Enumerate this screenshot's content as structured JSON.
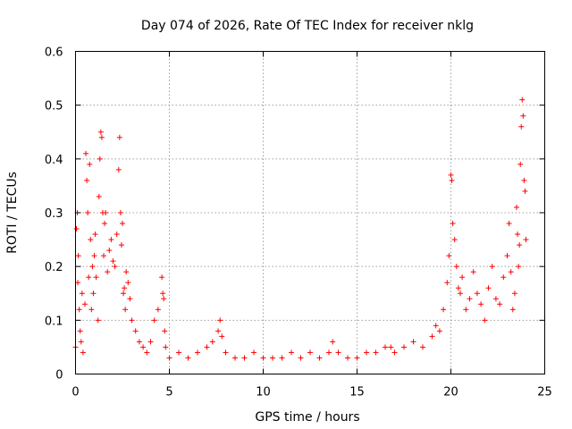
{
  "chart_data": {
    "type": "scatter",
    "title": "Day 074 of 2026, Rate Of TEC Index for receiver nklg",
    "xlabel": "GPS time / hours",
    "ylabel": "ROTI / TECUs",
    "xlim": [
      0,
      25
    ],
    "ylim": [
      0,
      0.6
    ],
    "xticks": [
      "0",
      "5",
      "10",
      "15",
      "20",
      "25"
    ],
    "yticks": [
      "0",
      "0.1",
      "0.2",
      "0.3",
      "0.4",
      "0.5",
      "0.6"
    ],
    "grid": true,
    "legend": "none",
    "marker": "+",
    "color": "#ff0000",
    "series": [
      {
        "x": [
          0.0,
          0.05,
          0.1,
          0.12,
          0.15,
          0.2,
          0.25,
          0.3,
          0.35,
          0.4,
          0.5,
          0.55,
          0.6,
          0.65,
          0.7,
          0.75,
          0.8,
          0.85,
          0.9,
          0.95,
          1.0,
          1.05,
          1.1,
          1.2,
          1.25,
          1.3,
          1.35,
          1.4,
          1.45,
          1.5,
          1.55,
          1.6,
          1.7,
          1.8,
          1.9,
          2.0,
          2.1,
          2.2,
          2.3,
          2.35,
          2.4,
          2.45,
          2.5,
          2.55,
          2.6,
          2.65,
          2.7,
          2.8,
          2.9,
          3.0,
          3.2,
          3.4,
          3.6,
          3.8,
          4.0,
          4.2,
          4.4,
          4.6,
          4.65,
          4.7,
          4.75,
          4.8,
          5.0,
          5.5,
          6.0,
          6.5,
          7.0,
          7.3,
          7.6,
          7.7,
          7.8,
          8.0,
          8.5,
          9.0,
          9.5,
          10.0,
          10.5,
          11.0,
          11.5,
          12.0,
          12.5,
          13.0,
          13.5,
          13.7,
          14.0,
          14.5,
          15.0,
          15.5,
          16.0,
          16.5,
          16.8,
          17.0,
          17.5,
          18.0,
          18.5,
          19.0,
          19.2,
          19.4,
          19.6,
          19.8,
          19.9,
          20.0,
          20.05,
          20.1,
          20.2,
          20.3,
          20.4,
          20.5,
          20.6,
          20.8,
          21.0,
          21.2,
          21.4,
          21.6,
          21.8,
          22.0,
          22.2,
          22.4,
          22.6,
          22.8,
          23.0,
          23.1,
          23.2,
          23.3,
          23.4,
          23.5,
          23.55,
          23.6,
          23.65,
          23.7,
          23.75,
          23.8,
          23.85,
          23.9,
          23.95,
          24.0
        ],
        "y": [
          0.05,
          0.27,
          0.3,
          0.17,
          0.22,
          0.12,
          0.08,
          0.06,
          0.15,
          0.04,
          0.13,
          0.41,
          0.36,
          0.3,
          0.18,
          0.39,
          0.25,
          0.12,
          0.2,
          0.15,
          0.22,
          0.26,
          0.18,
          0.1,
          0.33,
          0.4,
          0.45,
          0.44,
          0.3,
          0.22,
          0.28,
          0.3,
          0.19,
          0.23,
          0.25,
          0.21,
          0.2,
          0.26,
          0.38,
          0.44,
          0.3,
          0.24,
          0.28,
          0.15,
          0.16,
          0.12,
          0.19,
          0.17,
          0.14,
          0.1,
          0.08,
          0.06,
          0.05,
          0.04,
          0.06,
          0.1,
          0.12,
          0.18,
          0.15,
          0.14,
          0.08,
          0.05,
          0.03,
          0.04,
          0.03,
          0.04,
          0.05,
          0.06,
          0.08,
          0.1,
          0.07,
          0.04,
          0.03,
          0.03,
          0.04,
          0.03,
          0.03,
          0.03,
          0.04,
          0.03,
          0.04,
          0.03,
          0.04,
          0.06,
          0.04,
          0.03,
          0.03,
          0.04,
          0.04,
          0.05,
          0.05,
          0.04,
          0.05,
          0.06,
          0.05,
          0.07,
          0.09,
          0.08,
          0.12,
          0.17,
          0.22,
          0.37,
          0.36,
          0.28,
          0.25,
          0.2,
          0.16,
          0.15,
          0.18,
          0.12,
          0.14,
          0.19,
          0.15,
          0.13,
          0.1,
          0.16,
          0.2,
          0.14,
          0.13,
          0.18,
          0.22,
          0.28,
          0.19,
          0.12,
          0.15,
          0.31,
          0.26,
          0.2,
          0.24,
          0.39,
          0.46,
          0.51,
          0.48,
          0.36,
          0.34,
          0.25
        ]
      }
    ]
  }
}
